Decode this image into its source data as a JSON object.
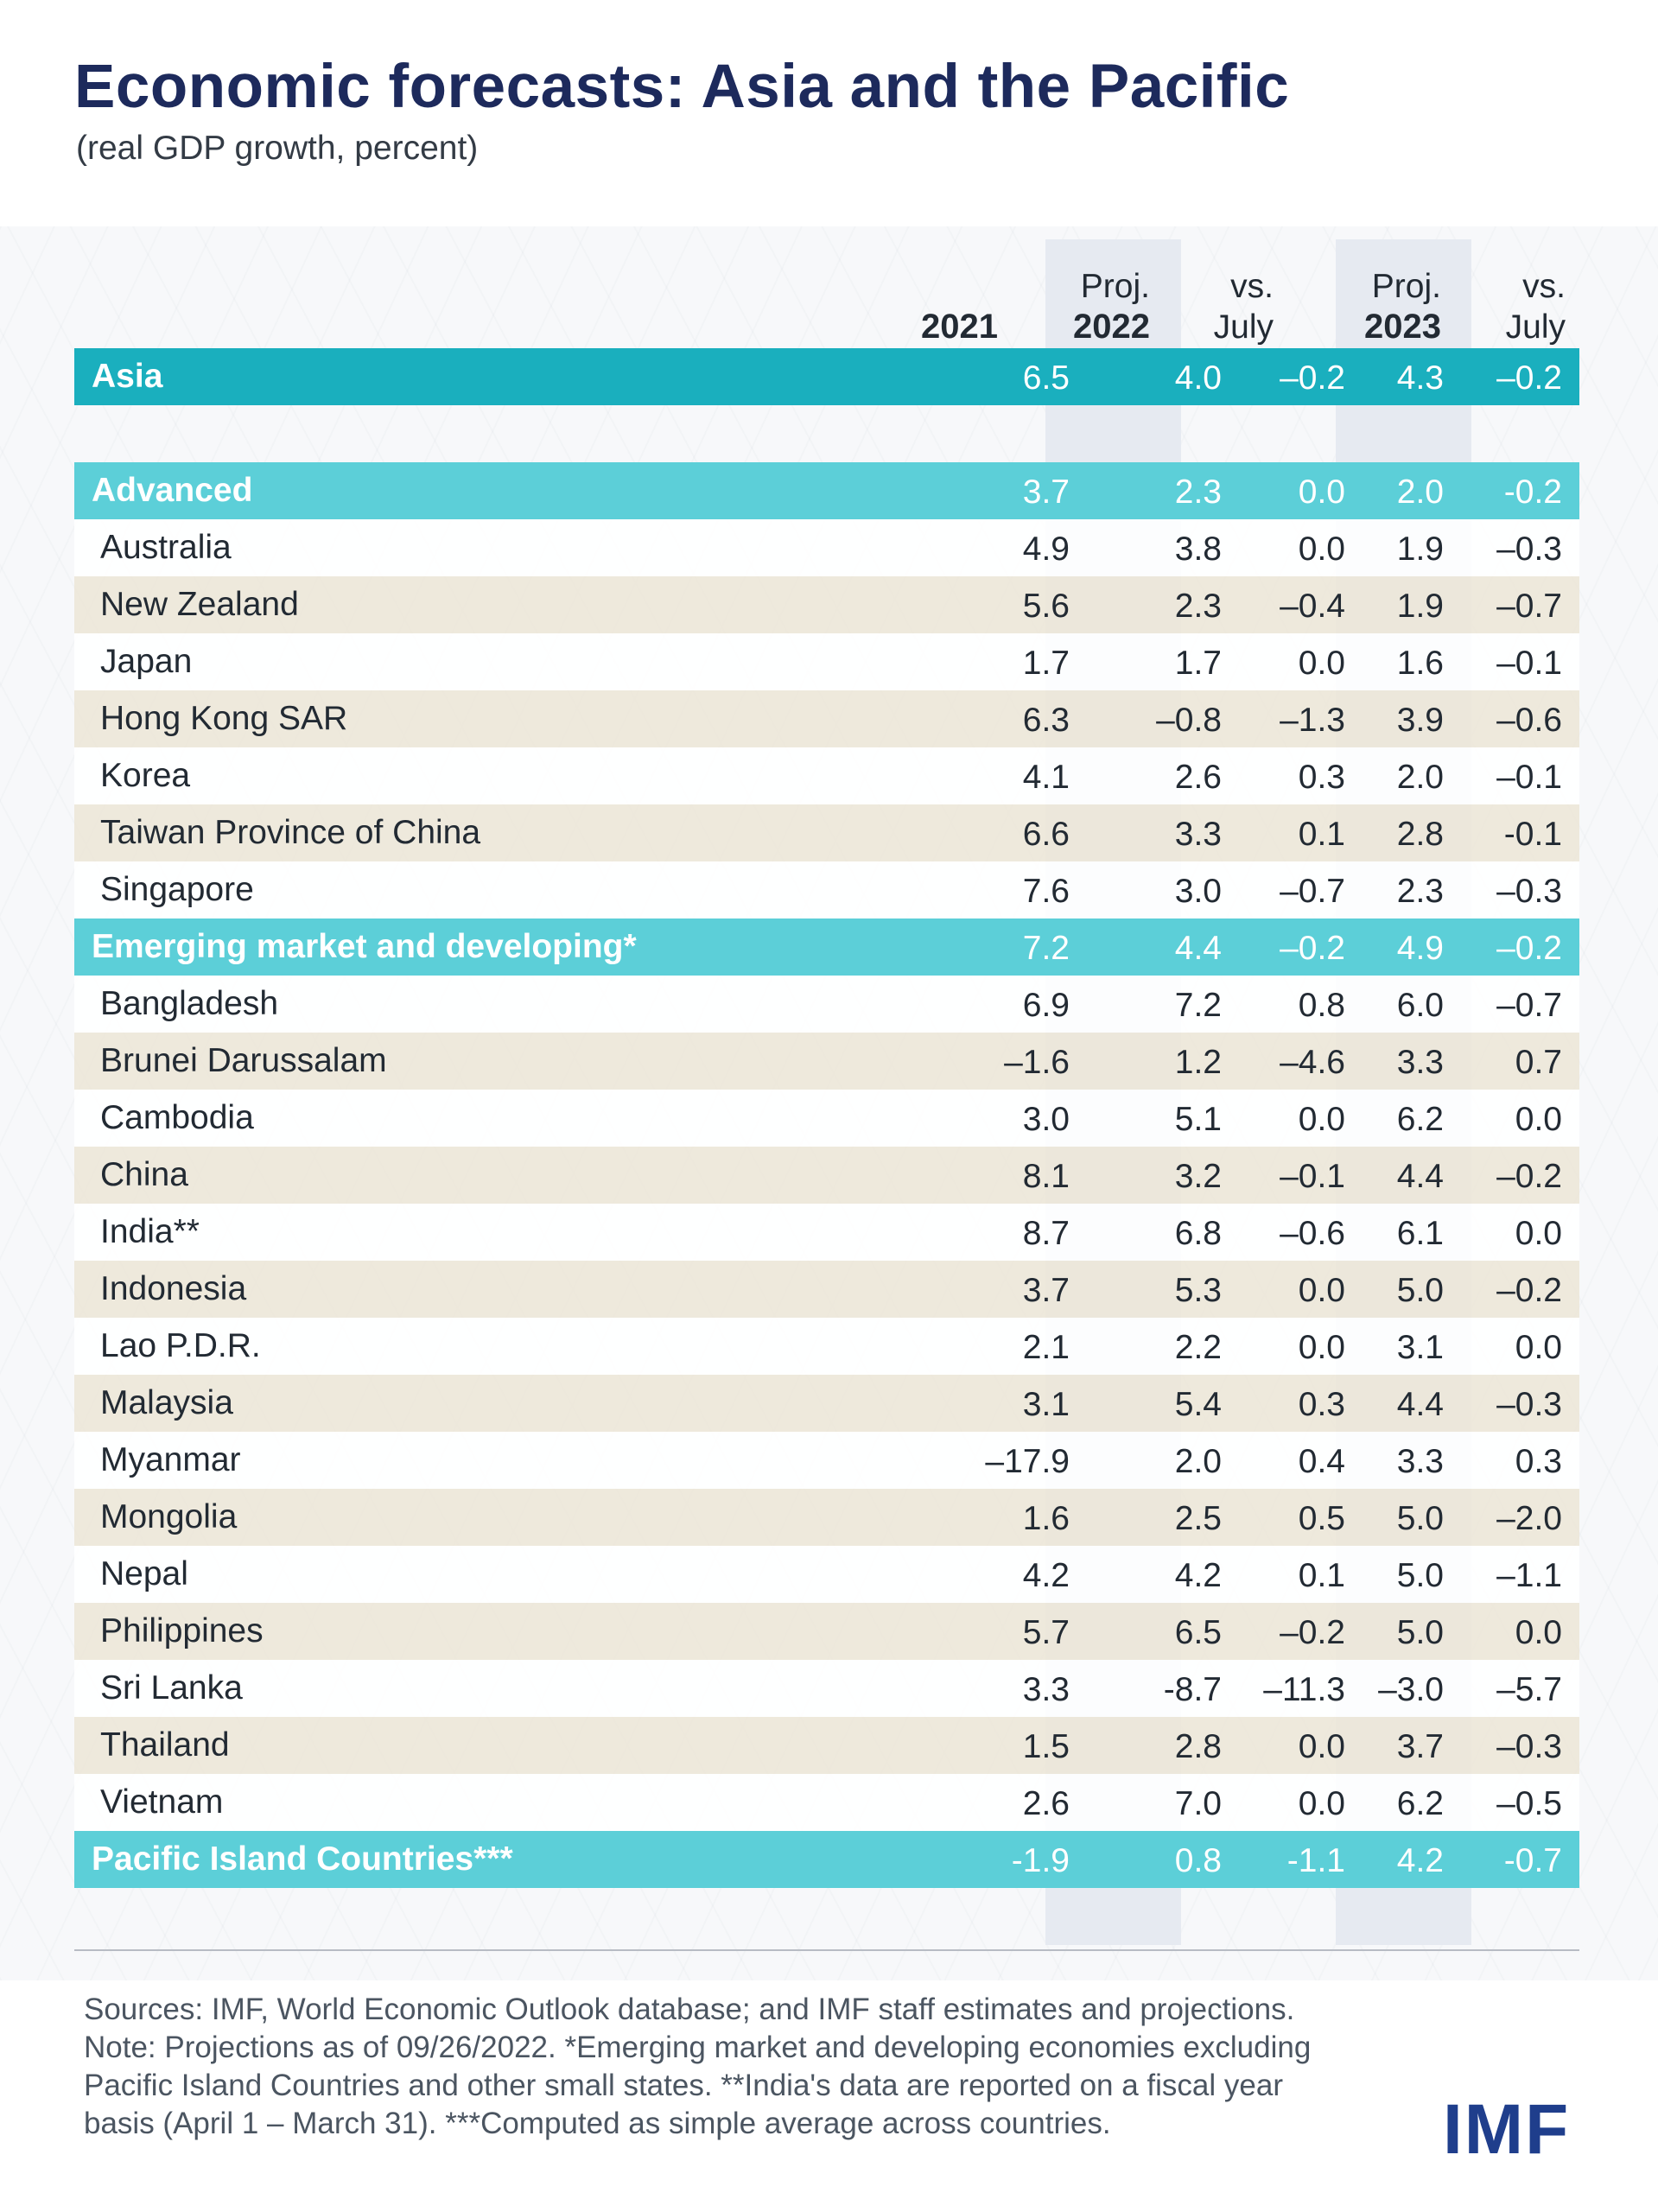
{
  "title": "Economic forecasts: Asia and the Pacific",
  "subtitle": "(real GDP growth, percent)",
  "logo": "IMF",
  "colors": {
    "title": "#1d2a5c",
    "region_dark": "#1aafbe",
    "region_light": "#5ccfd8",
    "projection_band": "#e6eaf1",
    "row_band": "#ece7d8",
    "logo": "#1f3e8c"
  },
  "columns": [
    {
      "line1": "",
      "line2": "2021"
    },
    {
      "line1": "Proj.",
      "line2": "2022"
    },
    {
      "line1": "vs.",
      "line2": "July"
    },
    {
      "line1": "Proj.",
      "line2": "2023"
    },
    {
      "line1": "vs.",
      "line2": "July"
    }
  ],
  "chart_data": {
    "type": "table",
    "title": "Economic forecasts: Asia and the Pacific",
    "subtitle": "(real GDP growth, percent)",
    "columns": [
      "2021",
      "Proj. 2022",
      "vs. July",
      "Proj. 2023",
      "vs. July"
    ],
    "rows": [
      {
        "name": "Asia",
        "kind": "region-dark",
        "values": [
          "6.5",
          "4.0",
          "–0.2",
          "4.3",
          "–0.2"
        ]
      },
      {
        "name": "",
        "kind": "spacer",
        "values": [
          "",
          "",
          "",
          "",
          ""
        ]
      },
      {
        "name": "Advanced",
        "kind": "region-light",
        "values": [
          "3.7",
          "2.3",
          "0.0",
          "2.0",
          "-0.2"
        ]
      },
      {
        "name": "Australia",
        "kind": "band-white",
        "values": [
          "4.9",
          "3.8",
          "0.0",
          "1.9",
          "–0.3"
        ]
      },
      {
        "name": "New Zealand",
        "kind": "band-beige",
        "values": [
          "5.6",
          "2.3",
          "–0.4",
          "1.9",
          "–0.7"
        ]
      },
      {
        "name": "Japan",
        "kind": "band-white",
        "values": [
          "1.7",
          "1.7",
          "0.0",
          "1.6",
          "–0.1"
        ]
      },
      {
        "name": "Hong Kong SAR",
        "kind": "band-beige",
        "values": [
          "6.3",
          "–0.8",
          "–1.3",
          "3.9",
          "–0.6"
        ]
      },
      {
        "name": "Korea",
        "kind": "band-white",
        "values": [
          "4.1",
          "2.6",
          "0.3",
          "2.0",
          "–0.1"
        ]
      },
      {
        "name": "Taiwan Province of China",
        "kind": "band-beige",
        "values": [
          "6.6",
          "3.3",
          "0.1",
          "2.8",
          "-0.1"
        ]
      },
      {
        "name": "Singapore",
        "kind": "band-white",
        "values": [
          "7.6",
          "3.0",
          "–0.7",
          "2.3",
          "–0.3"
        ]
      },
      {
        "name": "Emerging market and developing*",
        "kind": "region-light",
        "values": [
          "7.2",
          "4.4",
          "–0.2",
          "4.9",
          "–0.2"
        ]
      },
      {
        "name": "Bangladesh",
        "kind": "band-white",
        "values": [
          "6.9",
          "7.2",
          "0.8",
          "6.0",
          "–0.7"
        ]
      },
      {
        "name": "Brunei Darussalam",
        "kind": "band-beige",
        "values": [
          "–1.6",
          "1.2",
          "–4.6",
          "3.3",
          "0.7"
        ]
      },
      {
        "name": "Cambodia",
        "kind": "band-white",
        "values": [
          "3.0",
          "5.1",
          "0.0",
          "6.2",
          "0.0"
        ]
      },
      {
        "name": "China",
        "kind": "band-beige",
        "values": [
          "8.1",
          "3.2",
          "–0.1",
          "4.4",
          "–0.2"
        ]
      },
      {
        "name": "India**",
        "kind": "band-white",
        "values": [
          "8.7",
          "6.8",
          "–0.6",
          "6.1",
          "0.0"
        ]
      },
      {
        "name": "Indonesia",
        "kind": "band-beige",
        "values": [
          "3.7",
          "5.3",
          "0.0",
          "5.0",
          "–0.2"
        ]
      },
      {
        "name": "Lao P.D.R.",
        "kind": "band-white",
        "values": [
          "2.1",
          "2.2",
          "0.0",
          "3.1",
          "0.0"
        ]
      },
      {
        "name": "Malaysia",
        "kind": "band-beige",
        "values": [
          "3.1",
          "5.4",
          "0.3",
          "4.4",
          "–0.3"
        ]
      },
      {
        "name": "Myanmar",
        "kind": "band-white",
        "values": [
          "–17.9",
          "2.0",
          "0.4",
          "3.3",
          "0.3"
        ]
      },
      {
        "name": "Mongolia",
        "kind": "band-beige",
        "values": [
          "1.6",
          "2.5",
          "0.5",
          "5.0",
          "–2.0"
        ]
      },
      {
        "name": "Nepal",
        "kind": "band-white",
        "values": [
          "4.2",
          "4.2",
          "0.1",
          "5.0",
          "–1.1"
        ]
      },
      {
        "name": "Philippines",
        "kind": "band-beige",
        "values": [
          "5.7",
          "6.5",
          "–0.2",
          "5.0",
          "0.0"
        ]
      },
      {
        "name": "Sri Lanka",
        "kind": "band-white",
        "values": [
          "3.3",
          "-8.7",
          "–11.3",
          "–3.0",
          "–5.7"
        ]
      },
      {
        "name": "Thailand",
        "kind": "band-beige",
        "values": [
          "1.5",
          "2.8",
          "0.0",
          "3.7",
          "–0.3"
        ]
      },
      {
        "name": "Vietnam",
        "kind": "band-white",
        "values": [
          "2.6",
          "7.0",
          "0.0",
          "6.2",
          "–0.5"
        ]
      },
      {
        "name": "Pacific Island Countries***",
        "kind": "region-light",
        "values": [
          "-1.9",
          "0.8",
          "-1.1",
          "4.2",
          "-0.7"
        ]
      }
    ]
  },
  "footer": {
    "line1": "Sources: IMF, World Economic Outlook database; and IMF staff estimates and projections.",
    "line2": "Note: Projections as of 09/26/2022. *Emerging market and developing economies excluding",
    "line3": "Pacific Island Countries and other small states. **India's data are reported on a fiscal year",
    "line4": "basis (April 1 – March 31). ***Computed as simple average across countries."
  }
}
